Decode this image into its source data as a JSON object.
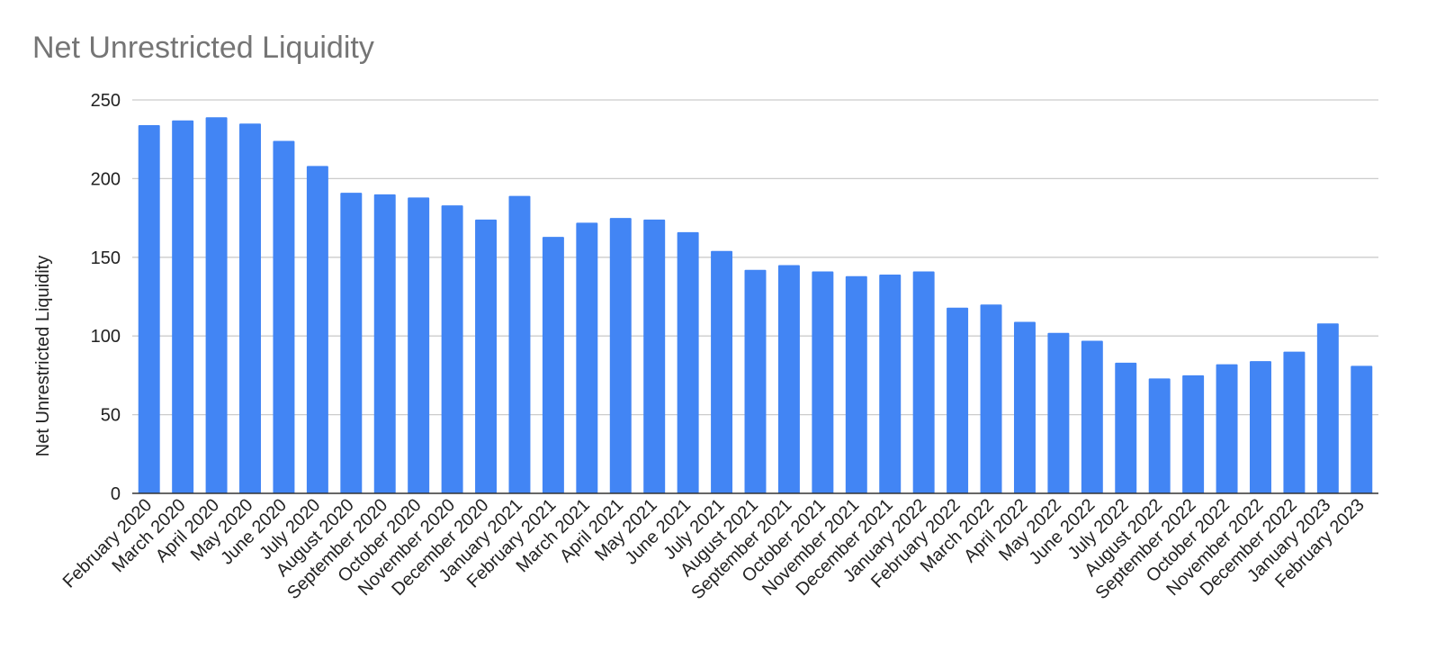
{
  "chart_data": {
    "type": "bar",
    "title": "Net Unrestricted Liquidity",
    "xlabel": "",
    "ylabel": "Net Unrestricted Liquidity",
    "ylim": [
      0,
      250
    ],
    "yticks": [
      0,
      50,
      100,
      150,
      200,
      250
    ],
    "grid": true,
    "bar_color": "#4285f4",
    "categories": [
      "February 2020",
      "March 2020",
      "April 2020",
      "May 2020",
      "June 2020",
      "July 2020",
      "August 2020",
      "September 2020",
      "October 2020",
      "November 2020",
      "December 2020",
      "January 2021",
      "February 2021",
      "March 2021",
      "April 2021",
      "May 2021",
      "June 2021",
      "July 2021",
      "August 2021",
      "September 2021",
      "October 2021",
      "November 2021",
      "December 2021",
      "January 2022",
      "February 2022",
      "March 2022",
      "April 2022",
      "May 2022",
      "June 2022",
      "July 2022",
      "August 2022",
      "September 2022",
      "October 2022",
      "November 2022",
      "December 2022",
      "January 2023",
      "February 2023"
    ],
    "values": [
      234,
      237,
      239,
      235,
      224,
      208,
      191,
      190,
      188,
      183,
      174,
      189,
      163,
      172,
      175,
      174,
      166,
      154,
      142,
      145,
      141,
      138,
      139,
      141,
      118,
      120,
      109,
      102,
      97,
      83,
      73,
      75,
      82,
      84,
      90,
      108,
      81
    ]
  }
}
